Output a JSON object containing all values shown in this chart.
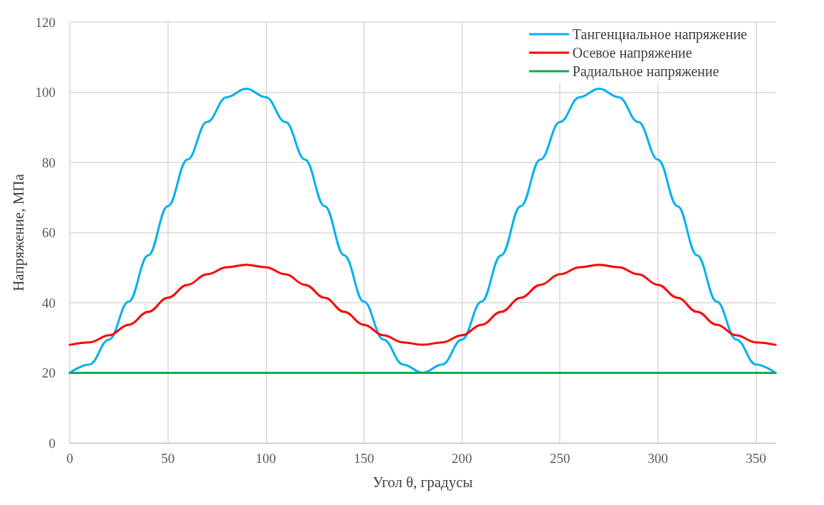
{
  "chart_data": {
    "type": "line",
    "xlabel": "Угол θ, градусы",
    "ylabel": "Напряжение, МПа",
    "x": [
      0,
      10,
      20,
      30,
      40,
      50,
      60,
      70,
      80,
      90,
      100,
      110,
      120,
      130,
      140,
      150,
      160,
      170,
      180,
      190,
      200,
      210,
      220,
      230,
      240,
      250,
      260,
      270,
      280,
      290,
      300,
      310,
      320,
      330,
      340,
      350,
      360
    ],
    "series": [
      {
        "name": "Тангенциальное напряжение",
        "color": "#00b0f0",
        "values": [
          20,
          22.4,
          29.5,
          40.3,
          53.5,
          67.5,
          80.8,
          91.5,
          98.6,
          101,
          98.6,
          91.5,
          80.8,
          67.5,
          53.5,
          40.3,
          29.5,
          22.4,
          20,
          22.4,
          29.5,
          40.3,
          53.5,
          67.5,
          80.8,
          91.5,
          98.6,
          101,
          98.6,
          91.5,
          80.8,
          67.5,
          53.5,
          40.3,
          29.5,
          22.4,
          20
        ]
      },
      {
        "name": "Осевое напряжение",
        "color": "#ff0000",
        "values": [
          28,
          28.7,
          30.7,
          33.7,
          37.4,
          41.4,
          45.1,
          48.1,
          50.1,
          50.8,
          50.1,
          48.1,
          45.1,
          41.4,
          37.4,
          33.7,
          30.7,
          28.7,
          28,
          28.7,
          30.7,
          33.7,
          37.4,
          41.4,
          45.1,
          48.1,
          50.1,
          50.8,
          50.1,
          48.1,
          45.1,
          41.4,
          37.4,
          33.7,
          30.7,
          28.7,
          28
        ]
      },
      {
        "name": "Радиальное напряжение",
        "color": "#00b050",
        "values": [
          20,
          20,
          20,
          20,
          20,
          20,
          20,
          20,
          20,
          20,
          20,
          20,
          20,
          20,
          20,
          20,
          20,
          20,
          20,
          20,
          20,
          20,
          20,
          20,
          20,
          20,
          20,
          20,
          20,
          20,
          20,
          20,
          20,
          20,
          20,
          20,
          20
        ]
      }
    ],
    "xlim": [
      0,
      360
    ],
    "xticks": [
      0,
      50,
      100,
      150,
      200,
      250,
      300,
      350
    ],
    "ylim": [
      0,
      120
    ],
    "yticks": [
      0,
      20,
      40,
      60,
      80,
      100,
      120
    ],
    "grid": true,
    "legend": "top right",
    "marker": "none",
    "line_style": "solid"
  }
}
